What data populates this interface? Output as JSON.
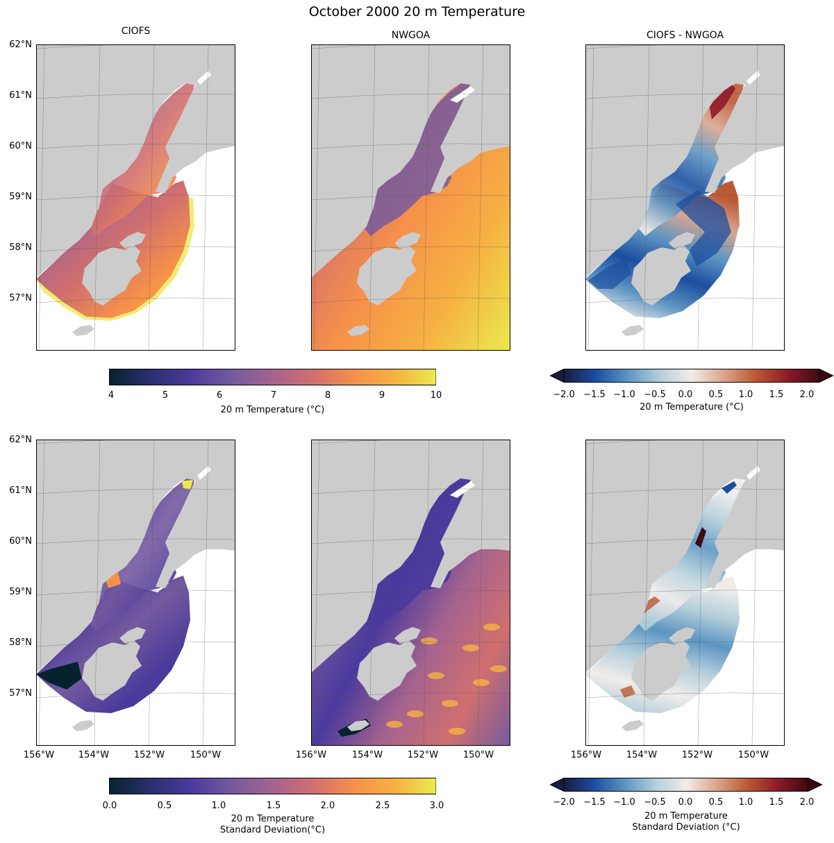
{
  "chart_data": {
    "type": "map-grid",
    "title": "October 2000 20 m Temperature",
    "panels": [
      {
        "id": "ciofs_mean",
        "title": "CIOFS",
        "variable": "20 m Temperature",
        "domain": "CIOFS",
        "colormap": "thermal",
        "range": [
          4,
          10
        ]
      },
      {
        "id": "nwgoa_mean",
        "title": "NWGOA",
        "variable": "20 m Temperature",
        "domain": "NWGOA",
        "colormap": "thermal",
        "range": [
          4,
          10
        ]
      },
      {
        "id": "diff_mean",
        "title": "CIOFS - NWGOA",
        "variable": "20 m Temperature difference",
        "domain": "CIOFS",
        "colormap": "balance",
        "range": [
          -2,
          2
        ]
      },
      {
        "id": "ciofs_std",
        "title": "",
        "variable": "20 m Temperature Standard Deviation",
        "domain": "CIOFS",
        "colormap": "thermal",
        "range": [
          0,
          3
        ]
      },
      {
        "id": "nwgoa_std",
        "title": "",
        "variable": "20 m Temperature Standard Deviation",
        "domain": "NWGOA",
        "colormap": "thermal",
        "range": [
          0,
          3
        ]
      },
      {
        "id": "diff_std",
        "title": "",
        "variable": "20 m Temperature Standard Deviation difference",
        "domain": "CIOFS",
        "colormap": "balance",
        "range": [
          -2,
          2
        ]
      }
    ],
    "lat_ticks": [
      "62°N",
      "61°N",
      "60°N",
      "59°N",
      "58°N",
      "57°N"
    ],
    "lon_ticks": [
      "156°W",
      "154°W",
      "152°W",
      "150°W"
    ],
    "colorbars": [
      {
        "id": "temp_mean",
        "ticks": [
          "4",
          "5",
          "6",
          "7",
          "8",
          "9",
          "10"
        ],
        "label": "20 m Temperature (°C)",
        "range": [
          4,
          10
        ],
        "extend": "neither"
      },
      {
        "id": "diff_mean",
        "ticks": [
          "−2.0",
          "−1.5",
          "−1.0",
          "−0.5",
          "0.0",
          "0.5",
          "1.0",
          "1.5",
          "2.0"
        ],
        "label": "20 m Temperature (°C)",
        "range": [
          -2,
          2
        ],
        "extend": "both"
      },
      {
        "id": "temp_std",
        "ticks": [
          "0.0",
          "0.5",
          "1.0",
          "1.5",
          "2.0",
          "2.5",
          "3.0"
        ],
        "label_line1": "20 m Temperature",
        "label_line2": "Standard Deviation(°C)",
        "range": [
          0,
          3
        ],
        "extend": "neither"
      },
      {
        "id": "diff_std",
        "ticks": [
          "−2.0",
          "−1.5",
          "−1.0",
          "−0.5",
          "0.0",
          "0.5",
          "1.0",
          "1.5",
          "2.0"
        ],
        "label_line1": "20 m Temperature",
        "label_line2": "Standard Deviation (°C)",
        "range": [
          -2,
          2
        ],
        "extend": "both"
      }
    ]
  },
  "colors": {
    "land": "#cccccc",
    "thermal": [
      "#04232e",
      "#2a2f6e",
      "#4a3a9c",
      "#745a9e",
      "#a5638f",
      "#d06f6f",
      "#f6904a",
      "#f6b142",
      "#eaea4f"
    ],
    "balance": [
      "#181c43",
      "#1b4ea0",
      "#5c95c3",
      "#b4cfda",
      "#f1ecea",
      "#dba58d",
      "#bb5934",
      "#8e1b29",
      "#3c0911"
    ]
  }
}
